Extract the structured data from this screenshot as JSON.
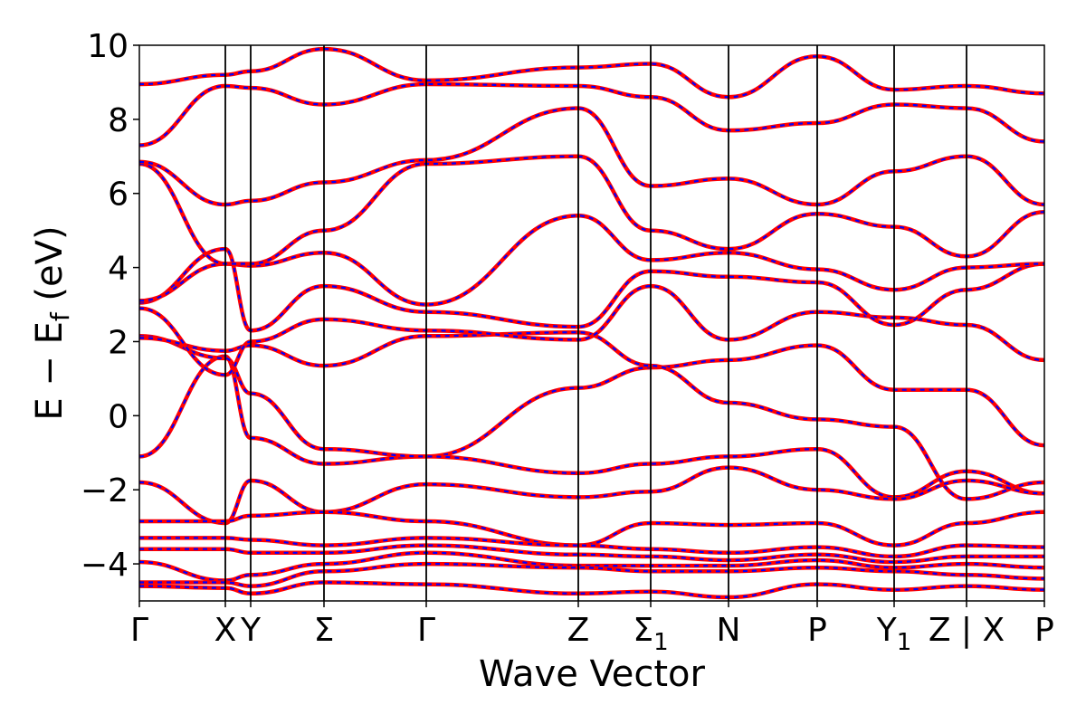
{
  "chart_data": {
    "type": "line",
    "title": "",
    "xlabel": "Wave Vector",
    "ylabel": "E − E_f (eV)",
    "ylabel_parts": {
      "main": "E − E",
      "sub": "f",
      "unit": " (eV)"
    },
    "ylim": [
      -5,
      10
    ],
    "y_ticks": [
      {
        "value": 10,
        "label": "10"
      },
      {
        "value": 8,
        "label": "8"
      },
      {
        "value": 6,
        "label": "6"
      },
      {
        "value": 4,
        "label": "4"
      },
      {
        "value": 2,
        "label": "2"
      },
      {
        "value": 0,
        "label": "0"
      },
      {
        "value": -2,
        "label": "−2"
      },
      {
        "value": -4,
        "label": "−4"
      }
    ],
    "k_points": [
      {
        "label": "Γ",
        "sub": "",
        "x": 0
      },
      {
        "label": "X",
        "sub": "",
        "x": 0.095
      },
      {
        "label": "Y",
        "sub": "",
        "x": 0.123
      },
      {
        "label": "Σ",
        "sub": "",
        "x": 0.204
      },
      {
        "label": "Γ",
        "sub": "",
        "x": 0.317
      },
      {
        "label": "Z",
        "sub": "",
        "x": 0.485
      },
      {
        "label": "Σ",
        "sub": "1",
        "x": 0.565
      },
      {
        "label": "N",
        "sub": "",
        "x": 0.651
      },
      {
        "label": "P",
        "sub": "",
        "x": 0.749
      },
      {
        "label": "Y",
        "sub": "1",
        "x": 0.834
      },
      {
        "label": "Z | X",
        "sub": "",
        "x": 0.914
      },
      {
        "label": "P",
        "sub": "",
        "x": 1
      }
    ],
    "series_styles": [
      {
        "color": "#ff0000",
        "style": "solid"
      },
      {
        "color": "#0000ff",
        "style": "dashed"
      }
    ],
    "bands": [
      {
        "segments": [
          [
            -1.1,
            1.6,
            -0.6,
            -1.3,
            -1.1,
            0.75,
            1.3,
            1.5,
            1.9,
            0.7,
            0.7,
            -0.8
          ]
        ]
      },
      {
        "segments": [
          [
            2.15,
            1.55,
            0.6,
            -0.9,
            -1.1,
            -1.55,
            -1.3,
            -1.1,
            -0.9,
            -2.2,
            -1.5,
            -2.1
          ]
        ]
      },
      {
        "segments": [
          [
            2.1,
            1.75,
            1.9,
            1.35,
            2.15,
            2.25,
            1.35,
            0.35,
            -0.1,
            -0.3,
            -2.25,
            -1.8
          ]
        ]
      },
      {
        "segments": [
          [
            2.9,
            1.1,
            2.0,
            2.6,
            2.3,
            2.05,
            3.5,
            2.05,
            2.8,
            2.65,
            2.45,
            1.5
          ]
        ]
      },
      {
        "segments": [
          [
            3.05,
            4.5,
            2.3,
            3.5,
            2.8,
            2.4,
            3.9,
            3.75,
            3.6,
            2.45,
            3.4,
            4.1
          ]
        ]
      },
      {
        "segments": [
          [
            3.1,
            4.1,
            4.05,
            4.4,
            3.0,
            5.4,
            4.2,
            4.4,
            3.95,
            3.4,
            4.0,
            4.1
          ]
        ]
      },
      {
        "segments": [
          [
            6.8,
            4.1,
            4.1,
            5.0,
            6.8,
            7.0,
            5.0,
            4.5,
            5.45,
            5.1,
            4.3,
            5.5
          ]
        ]
      },
      {
        "segments": [
          [
            6.85,
            5.7,
            5.8,
            6.3,
            6.9,
            8.3,
            6.2,
            6.4,
            5.7,
            6.6,
            7.0,
            5.7
          ]
        ]
      },
      {
        "segments": [
          [
            7.3,
            8.9,
            8.85,
            8.4,
            8.95,
            8.9,
            8.6,
            7.7,
            7.9,
            8.4,
            8.3,
            7.4
          ]
        ]
      },
      {
        "segments": [
          [
            8.95,
            9.2,
            9.3,
            9.9,
            9.05,
            9.4,
            9.5,
            8.6,
            9.7,
            8.8,
            8.9,
            8.7
          ]
        ]
      },
      {
        "segments": [
          [
            -1.8,
            -2.9,
            -1.75,
            -2.6,
            -1.85,
            -2.2,
            -2.05,
            -1.4,
            -2.0,
            -2.25,
            -1.75,
            -2.1
          ]
        ]
      },
      {
        "segments": [
          [
            -2.85,
            -2.85,
            -2.7,
            -2.6,
            -2.85,
            -3.5,
            -2.9,
            -2.95,
            -2.9,
            -3.5,
            -2.9,
            -2.6
          ]
        ]
      },
      {
        "segments": [
          [
            -3.3,
            -3.3,
            -3.35,
            -3.5,
            -3.3,
            -3.5,
            -3.6,
            -3.7,
            -3.55,
            -3.8,
            -3.5,
            -3.55
          ]
        ]
      },
      {
        "segments": [
          [
            -3.6,
            -3.6,
            -3.7,
            -3.7,
            -3.5,
            -3.75,
            -3.8,
            -3.9,
            -3.75,
            -3.95,
            -3.8,
            -3.8
          ]
        ]
      },
      {
        "segments": [
          [
            -3.95,
            -4.45,
            -4.3,
            -4.0,
            -3.7,
            -4.05,
            -4.05,
            -4.05,
            -3.9,
            -4.1,
            -4.0,
            -4.1
          ]
        ]
      },
      {
        "segments": [
          [
            -4.5,
            -4.5,
            -4.6,
            -4.2,
            -4.0,
            -4.1,
            -4.2,
            -4.2,
            -4.1,
            -4.2,
            -4.3,
            -4.4
          ]
        ]
      },
      {
        "segments": [
          [
            -4.6,
            -4.65,
            -4.8,
            -4.5,
            -4.55,
            -4.8,
            -4.75,
            -4.9,
            -4.55,
            -4.7,
            -4.6,
            -4.7
          ]
        ]
      }
    ]
  }
}
